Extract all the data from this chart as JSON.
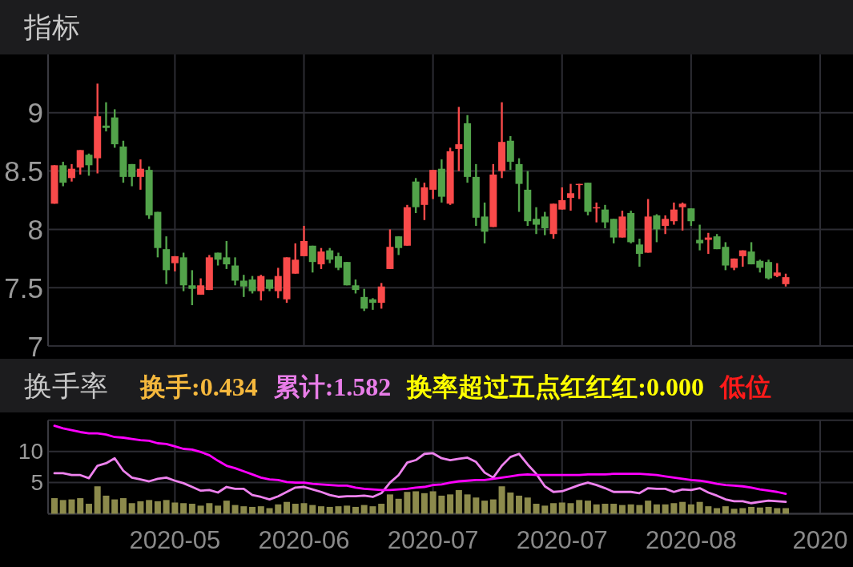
{
  "chart_data": [
    {
      "type": "candlestick",
      "title": "指标",
      "tick_labels": "y",
      "grid": true,
      "ylim": [
        7,
        9.5
      ],
      "yticks": [
        7,
        7.5,
        8,
        8.5,
        9
      ],
      "categories": [
        null,
        null,
        null,
        null,
        null,
        null,
        null,
        null,
        null,
        null,
        null,
        null,
        null,
        null,
        "2020-05",
        null,
        null,
        null,
        null,
        null,
        null,
        null,
        null,
        null,
        null,
        null,
        null,
        null,
        null,
        "2020-06",
        null,
        null,
        null,
        null,
        null,
        null,
        null,
        null,
        null,
        null,
        null,
        null,
        null,
        null,
        "2020-07",
        null,
        null,
        null,
        null,
        null,
        null,
        null,
        null,
        null,
        null,
        null,
        null,
        null,
        null,
        "2020-07",
        null,
        null,
        null,
        null,
        null,
        null,
        null,
        null,
        null,
        null,
        null,
        null,
        null,
        null,
        "2020-08",
        null,
        null,
        null,
        null,
        null,
        null,
        null,
        null,
        null,
        null,
        null,
        null,
        null,
        null,
        "2020"
      ],
      "ohlc": [
        [
          8.22,
          8.55,
          8.22,
          8.55
        ],
        [
          8.55,
          8.58,
          8.37,
          8.4
        ],
        [
          8.44,
          8.56,
          8.41,
          8.52
        ],
        [
          8.53,
          8.68,
          8.47,
          8.68
        ],
        [
          8.64,
          8.65,
          8.46,
          8.55
        ],
        [
          8.61,
          9.25,
          8.48,
          8.97
        ],
        [
          8.89,
          9.09,
          8.84,
          8.87
        ],
        [
          8.96,
          9.03,
          8.7,
          8.73
        ],
        [
          8.71,
          8.76,
          8.4,
          8.45
        ],
        [
          8.56,
          8.56,
          8.37,
          8.45
        ],
        [
          8.45,
          8.6,
          8.34,
          8.52
        ],
        [
          8.51,
          8.54,
          8.09,
          8.12
        ],
        [
          8.15,
          8.15,
          7.76,
          7.84
        ],
        [
          7.83,
          7.94,
          7.53,
          7.65
        ],
        [
          7.71,
          7.77,
          7.64,
          7.77
        ],
        [
          7.76,
          7.8,
          7.47,
          7.52
        ],
        [
          7.52,
          7.65,
          7.35,
          7.49
        ],
        [
          7.44,
          7.58,
          7.44,
          7.52
        ],
        [
          7.48,
          7.78,
          7.48,
          7.76
        ],
        [
          7.8,
          7.8,
          7.69,
          7.74
        ],
        [
          7.76,
          7.9,
          7.66,
          7.7
        ],
        [
          7.69,
          7.76,
          7.52,
          7.56
        ],
        [
          7.56,
          7.61,
          7.42,
          7.51
        ],
        [
          7.57,
          7.6,
          7.45,
          7.47
        ],
        [
          7.47,
          7.61,
          7.39,
          7.6
        ],
        [
          7.57,
          7.57,
          7.47,
          7.49
        ],
        [
          7.47,
          7.67,
          7.41,
          7.6
        ],
        [
          7.4,
          7.76,
          7.37,
          7.76
        ],
        [
          7.62,
          7.88,
          7.62,
          7.74
        ],
        [
          7.77,
          8.03,
          7.77,
          7.9
        ],
        [
          7.86,
          7.86,
          7.63,
          7.72
        ],
        [
          7.7,
          7.84,
          7.66,
          7.81
        ],
        [
          7.82,
          7.84,
          7.71,
          7.74
        ],
        [
          7.77,
          7.8,
          7.65,
          7.67
        ],
        [
          7.72,
          7.72,
          7.52,
          7.52
        ],
        [
          7.52,
          7.57,
          7.45,
          7.48
        ],
        [
          7.42,
          7.49,
          7.3,
          7.32
        ],
        [
          7.4,
          7.41,
          7.31,
          7.37
        ],
        [
          7.37,
          7.54,
          7.32,
          7.51
        ],
        [
          7.66,
          8.0,
          7.66,
          7.85
        ],
        [
          7.94,
          7.94,
          7.78,
          7.84
        ],
        [
          7.86,
          8.21,
          7.86,
          8.19
        ],
        [
          8.41,
          8.44,
          8.14,
          8.19
        ],
        [
          8.21,
          8.4,
          8.08,
          8.36
        ],
        [
          8.34,
          8.51,
          8.26,
          8.51
        ],
        [
          8.52,
          8.6,
          8.23,
          8.28
        ],
        [
          8.22,
          8.7,
          8.21,
          8.67
        ],
        [
          8.69,
          9.05,
          8.5,
          8.73
        ],
        [
          8.91,
          8.98,
          8.4,
          8.45
        ],
        [
          8.45,
          8.56,
          8.03,
          8.1
        ],
        [
          8.11,
          8.23,
          7.88,
          7.98
        ],
        [
          8.02,
          8.56,
          8.02,
          8.47
        ],
        [
          8.5,
          9.09,
          8.44,
          8.75
        ],
        [
          8.76,
          8.8,
          8.51,
          8.58
        ],
        [
          8.56,
          8.61,
          8.15,
          8.39
        ],
        [
          8.34,
          8.5,
          8.03,
          8.07
        ],
        [
          8.09,
          8.19,
          7.96,
          8.04
        ],
        [
          8.11,
          8.15,
          7.95,
          8.01
        ],
        [
          7.96,
          8.22,
          7.92,
          8.22
        ],
        [
          8.17,
          8.36,
          8.17,
          8.25
        ],
        [
          8.27,
          8.39,
          8.16,
          8.31
        ],
        [
          8.38,
          8.39,
          8.26,
          8.39
        ],
        [
          8.4,
          8.4,
          8.12,
          8.15
        ],
        [
          8.18,
          8.23,
          8.06,
          8.19
        ],
        [
          8.17,
          8.21,
          8.01,
          8.06
        ],
        [
          8.09,
          8.09,
          7.88,
          7.93
        ],
        [
          7.93,
          8.16,
          7.93,
          8.11
        ],
        [
          8.14,
          8.16,
          7.88,
          7.89
        ],
        [
          7.87,
          7.92,
          7.68,
          7.79
        ],
        [
          7.8,
          8.26,
          7.8,
          8.11
        ],
        [
          8.12,
          8.13,
          7.89,
          8.0
        ],
        [
          8.03,
          8.12,
          7.96,
          8.09
        ],
        [
          8.07,
          8.23,
          8.04,
          8.17
        ],
        [
          8.19,
          8.23,
          7.99,
          8.22
        ],
        [
          8.18,
          8.18,
          8.03,
          8.07
        ],
        [
          7.91,
          8.04,
          7.82,
          7.88
        ],
        [
          7.91,
          7.97,
          7.79,
          7.93
        ],
        [
          7.94,
          7.96,
          7.83,
          7.83
        ],
        [
          7.85,
          7.89,
          7.65,
          7.69
        ],
        [
          7.67,
          7.75,
          7.65,
          7.75
        ],
        [
          7.77,
          7.82,
          7.68,
          7.82
        ],
        [
          7.81,
          7.89,
          7.7,
          7.7
        ],
        [
          7.73,
          7.74,
          7.63,
          7.67
        ],
        [
          7.72,
          7.74,
          7.57,
          7.58
        ],
        [
          7.6,
          7.71,
          7.59,
          7.63
        ],
        [
          7.53,
          7.62,
          7.51,
          7.59
        ],
        null,
        null,
        null,
        null
      ],
      "colors": [
        "#f94a4a",
        "#52a34a",
        "#f94a4a",
        "#f94a4a",
        "#52a34a",
        "#f94a4a",
        "#52a34a",
        "#52a34a",
        "#52a34a",
        "#52a34a",
        "#f94a4a",
        "#52a34a",
        "#52a34a",
        "#52a34a",
        "#f94a4a",
        "#52a34a",
        "#52a34a",
        "#f94a4a",
        "#f94a4a",
        "#52a34a",
        "#52a34a",
        "#52a34a",
        "#52a34a",
        "#52a34a",
        "#f94a4a",
        "#52a34a",
        "#f94a4a",
        "#f94a4a",
        "#f94a4a",
        "#f94a4a",
        "#52a34a",
        "#f94a4a",
        "#52a34a",
        "#52a34a",
        "#52a34a",
        "#52a34a",
        "#52a34a",
        "#52a34a",
        "#f94a4a",
        "#f94a4a",
        "#52a34a",
        "#f94a4a",
        "#52a34a",
        "#f94a4a",
        "#f94a4a",
        "#52a34a",
        "#f94a4a",
        "#f94a4a",
        "#52a34a",
        "#52a34a",
        "#52a34a",
        "#f94a4a",
        "#f94a4a",
        "#52a34a",
        "#52a34a",
        "#52a34a",
        "#52a34a",
        "#52a34a",
        "#f94a4a",
        "#f94a4a",
        "#f94a4a",
        "#f94a4a",
        "#52a34a",
        "#f94a4a",
        "#52a34a",
        "#52a34a",
        "#f94a4a",
        "#52a34a",
        "#52a34a",
        "#f94a4a",
        "#52a34a",
        "#f94a4a",
        "#f94a4a",
        "#f94a4a",
        "#52a34a",
        "#52a34a",
        "#f94a4a",
        "#52a34a",
        "#52a34a",
        "#f94a4a",
        "#f94a4a",
        "#52a34a",
        "#52a34a",
        "#52a34a",
        "#f94a4a",
        "#f94a4a",
        null,
        null,
        null,
        null
      ]
    },
    {
      "type": "bar",
      "title": "换手率",
      "annotations": [
        "换手:0.434",
        "累计:1.582",
        "换率超过五点红红红:0.000",
        "低位"
      ],
      "grid": true,
      "ylim": [
        0,
        15
      ],
      "yticks": [
        {
          "value": 0,
          "label": null
        },
        5,
        10,
        {
          "value": 15,
          "label": null
        }
      ],
      "categories": [
        null,
        null,
        null,
        null,
        null,
        null,
        null,
        null,
        null,
        null,
        null,
        null,
        null,
        null,
        "2020-05",
        null,
        null,
        null,
        null,
        null,
        null,
        null,
        null,
        null,
        null,
        null,
        null,
        null,
        null,
        "2020-06",
        null,
        null,
        null,
        null,
        null,
        null,
        null,
        null,
        null,
        null,
        null,
        null,
        null,
        null,
        "2020-07",
        null,
        null,
        null,
        null,
        null,
        null,
        null,
        null,
        null,
        null,
        null,
        null,
        null,
        null,
        "2020-07",
        null,
        null,
        null,
        null,
        null,
        null,
        null,
        null,
        null,
        null,
        null,
        null,
        null,
        null,
        "2020-08",
        null,
        null,
        null,
        null,
        null,
        null,
        null,
        null,
        null,
        null,
        null,
        null,
        null,
        null,
        "2020"
      ],
      "series": [
        {
          "type": "bar",
          "color": "#8c8a4c",
          "values": [
            2.5,
            2.2,
            2.3,
            2.5,
            1.6,
            4.4,
            2.9,
            2.3,
            2.5,
            1.7,
            2.0,
            2.2,
            2.0,
            2.2,
            1.8,
            1.7,
            1.6,
            1.3,
            1.7,
            1.3,
            2.1,
            1.4,
            1.2,
            1.1,
            1.2,
            0.9,
            1.5,
            1.9,
            1.6,
            1.7,
            1.4,
            1.2,
            1.1,
            1.2,
            1.3,
            1.1,
            1.4,
            1.2,
            1.6,
            3.1,
            2.4,
            3.5,
            3.6,
            3.3,
            3.6,
            2.9,
            3.1,
            3.8,
            3.1,
            2.6,
            2.1,
            2.3,
            4.4,
            3.4,
            2.9,
            2.6,
            1.6,
            1.3,
            1.7,
            1.8,
            1.7,
            2.2,
            2.1,
            1.5,
            1.6,
            1.6,
            1.4,
            1.5,
            1.4,
            2.1,
            1.5,
            1.5,
            1.7,
            1.9,
            1.5,
            1.9,
            1.2,
            0.9,
            1.2,
            0.8,
            0.9,
            1.1,
            1.0,
            1.1,
            0.9,
            0.9,
            null,
            null,
            null,
            null
          ]
        },
        {
          "type": "line",
          "color": "#ee82ee",
          "values": [
            6.5,
            6.5,
            6.2,
            6.2,
            5.7,
            7.7,
            8.1,
            8.9,
            6.9,
            5.8,
            5.5,
            5.2,
            5.6,
            5.8,
            5.3,
            4.9,
            4.3,
            3.7,
            3.8,
            3.4,
            4.3,
            4.0,
            4.0,
            3.0,
            2.7,
            2.3,
            2.8,
            3.5,
            4.2,
            4.3,
            3.9,
            3.5,
            3.0,
            2.7,
            2.8,
            2.8,
            2.9,
            2.7,
            3.3,
            5.0,
            6.2,
            8.2,
            8.6,
            9.6,
            9.7,
            8.9,
            8.6,
            8.8,
            9.0,
            8.3,
            6.6,
            5.8,
            7.7,
            9.1,
            9.6,
            7.9,
            6.4,
            4.4,
            3.5,
            3.6,
            4.1,
            4.6,
            5.0,
            4.6,
            4.1,
            3.5,
            3.5,
            3.5,
            3.3,
            4.1,
            4.0,
            4.0,
            3.5,
            3.9,
            3.8,
            4.1,
            3.4,
            2.9,
            2.3,
            2.0,
            2.0,
            1.7,
            1.9,
            2.1,
            2.0,
            1.9,
            null,
            null,
            null,
            null
          ]
        },
        {
          "type": "line",
          "color": "#ff00ff",
          "values": [
            14.1,
            13.7,
            13.4,
            13.1,
            12.9,
            12.9,
            12.7,
            12.3,
            12.2,
            12.0,
            11.8,
            11.7,
            11.3,
            11.2,
            10.8,
            10.4,
            10.3,
            9.9,
            9.4,
            8.5,
            7.7,
            7.3,
            6.8,
            6.3,
            5.8,
            5.5,
            5.4,
            5.1,
            5.0,
            5.0,
            4.8,
            4.7,
            4.6,
            4.5,
            4.5,
            4.2,
            4.0,
            3.9,
            3.8,
            3.8,
            3.9,
            4.0,
            4.2,
            4.3,
            4.6,
            4.7,
            5.0,
            5.2,
            5.3,
            5.4,
            5.4,
            5.6,
            5.8,
            6.0,
            6.2,
            6.3,
            6.2,
            6.2,
            6.2,
            6.2,
            6.2,
            6.2,
            6.3,
            6.3,
            6.3,
            6.4,
            6.4,
            6.4,
            6.4,
            6.3,
            6.2,
            6.0,
            5.8,
            5.6,
            5.4,
            5.3,
            5.1,
            4.8,
            4.6,
            4.5,
            4.4,
            4.2,
            3.9,
            3.7,
            3.5,
            3.2,
            null,
            null,
            null,
            null
          ]
        }
      ]
    }
  ]
}
